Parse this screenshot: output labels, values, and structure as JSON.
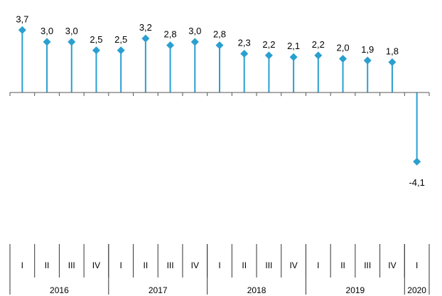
{
  "chart_data": {
    "type": "lollipop",
    "title": "",
    "xlabel": "",
    "ylabel": "",
    "color": "#2a9fd0",
    "ylim": [
      -6,
      5
    ],
    "x": [
      "2016-I",
      "2016-II",
      "2016-III",
      "2016-IV",
      "2017-I",
      "2017-II",
      "2017-III",
      "2017-IV",
      "2018-I",
      "2018-II",
      "2018-III",
      "2018-IV",
      "2019-I",
      "2019-II",
      "2019-III",
      "2019-IV",
      "2020-I"
    ],
    "quarters": [
      "I",
      "II",
      "III",
      "IV",
      "I",
      "II",
      "III",
      "IV",
      "I",
      "II",
      "III",
      "IV",
      "I",
      "II",
      "III",
      "IV",
      "I"
    ],
    "years": [
      {
        "label": "2016",
        "quarters": 4
      },
      {
        "label": "2017",
        "quarters": 4
      },
      {
        "label": "2018",
        "quarters": 4
      },
      {
        "label": "2019",
        "quarters": 4
      },
      {
        "label": "2020",
        "quarters": 1
      }
    ],
    "values": [
      3.7,
      3.0,
      3.0,
      2.5,
      2.5,
      3.2,
      2.8,
      3.0,
      2.8,
      2.3,
      2.2,
      2.1,
      2.2,
      2.0,
      1.9,
      1.8,
      -4.1
    ],
    "value_labels": [
      "3,7",
      "3,0",
      "3,0",
      "2,5",
      "2,5",
      "3,2",
      "2,8",
      "3,0",
      "2,8",
      "2,3",
      "2,2",
      "2,1",
      "2,2",
      "2,0",
      "1,9",
      "1,8",
      "-4,1"
    ]
  }
}
